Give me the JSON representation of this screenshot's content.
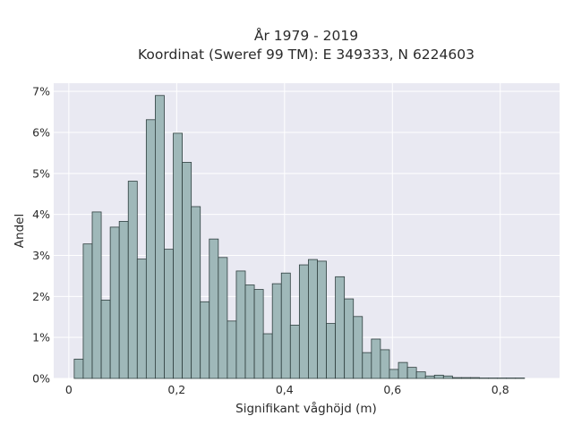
{
  "chart_data": {
    "type": "bar",
    "title": [
      "År 1979 - 2019",
      "Koordinat (Sweref 99 TM): E 349333, N 6224603"
    ],
    "xlabel": "Signifikant våghöjd (m)",
    "ylabel": "Andel",
    "bin_width": 0.0167,
    "bin_start": 0.01,
    "xlim": [
      -0.028,
      0.91
    ],
    "ylim": [
      0,
      7.2
    ],
    "xticks": [
      0,
      0.2,
      0.4,
      0.6,
      0.8
    ],
    "xtick_labels": [
      "0",
      "0,2",
      "0,4",
      "0,6",
      "0,8"
    ],
    "yticks": [
      0,
      1,
      2,
      3,
      4,
      5,
      6,
      7
    ],
    "ytick_labels": [
      "0%",
      "1%",
      "2%",
      "3%",
      "4%",
      "5%",
      "6%",
      "7%"
    ],
    "values": [
      0.47,
      3.28,
      4.06,
      1.91,
      3.69,
      3.83,
      4.81,
      2.91,
      6.31,
      6.9,
      3.15,
      5.98,
      5.27,
      4.19,
      1.87,
      3.4,
      2.95,
      1.4,
      2.62,
      2.28,
      2.17,
      1.09,
      2.31,
      2.57,
      1.3,
      2.77,
      2.9,
      2.86,
      1.34,
      2.48,
      1.94,
      1.51,
      0.63,
      0.96,
      0.7,
      0.22,
      0.39,
      0.27,
      0.16,
      0.06,
      0.08,
      0.06,
      0.02,
      0.02,
      0.02,
      0.01,
      0.01,
      0.01,
      0.01,
      0.01
    ],
    "bar_color": "#9fb8b9",
    "bar_edge_color": "#2f3f3f",
    "grid": true,
    "plot_background": "#e9e9f2",
    "grid_color": "#ffffff"
  }
}
